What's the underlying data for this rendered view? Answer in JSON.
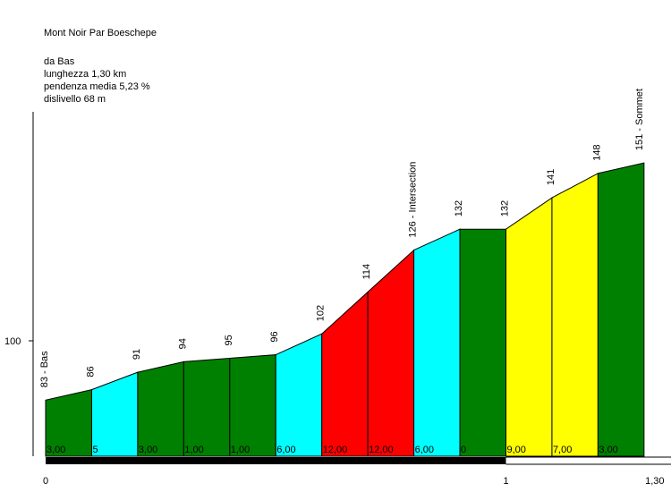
{
  "title": "Mont Noir Par Boeschepe",
  "info": {
    "from": "da Bas",
    "length": "lunghezza 1,30 km",
    "avg_gradient": "pendenza media 5,23 %",
    "elevation_gain": "dislivello 68 m"
  },
  "chart_data": {
    "type": "area",
    "title": "Mont Noir Par Boeschepe",
    "xlabel": "",
    "ylabel": "",
    "x_unit": "km",
    "xlim": [
      0,
      1.3
    ],
    "x_ticks": [
      {
        "value": 0,
        "label": "0"
      },
      {
        "value": 1,
        "label": "1"
      },
      {
        "value": 1.3,
        "label": "1,30"
      }
    ],
    "y_ticks": [
      {
        "value": 100,
        "label": "100"
      }
    ],
    "points": [
      {
        "x": 0.0,
        "y": 83,
        "label": "83 - Bas"
      },
      {
        "x": 0.1,
        "y": 86,
        "label": "86"
      },
      {
        "x": 0.2,
        "y": 91,
        "label": "91"
      },
      {
        "x": 0.3,
        "y": 94,
        "label": "94"
      },
      {
        "x": 0.4,
        "y": 95,
        "label": "95"
      },
      {
        "x": 0.5,
        "y": 96,
        "label": "96"
      },
      {
        "x": 0.6,
        "y": 102,
        "label": "102"
      },
      {
        "x": 0.7,
        "y": 114,
        "label": "114"
      },
      {
        "x": 0.8,
        "y": 126,
        "label": "126 - Intersection"
      },
      {
        "x": 0.9,
        "y": 132,
        "label": "132"
      },
      {
        "x": 1.0,
        "y": 132,
        "label": "132"
      },
      {
        "x": 1.1,
        "y": 141,
        "label": "141"
      },
      {
        "x": 1.2,
        "y": 148,
        "label": "148"
      },
      {
        "x": 1.3,
        "y": 151,
        "label": "151 - Sommet"
      }
    ],
    "segments": [
      {
        "gradient": 3.0,
        "label": "3,00",
        "color": "#008000"
      },
      {
        "gradient": 5.0,
        "label": "5",
        "color": "#00ffff"
      },
      {
        "gradient": 3.0,
        "label": "3,00",
        "color": "#008000"
      },
      {
        "gradient": 1.0,
        "label": "1,00",
        "color": "#008000"
      },
      {
        "gradient": 1.0,
        "label": "1,00",
        "color": "#008000"
      },
      {
        "gradient": 6.0,
        "label": "6,00",
        "color": "#00ffff"
      },
      {
        "gradient": 12.0,
        "label": "12,00",
        "color": "#ff0000"
      },
      {
        "gradient": 12.0,
        "label": "12,00",
        "color": "#ff0000"
      },
      {
        "gradient": 6.0,
        "label": "6,00",
        "color": "#00ffff"
      },
      {
        "gradient": 0,
        "label": "0",
        "color": "#008000"
      },
      {
        "gradient": 9.0,
        "label": "9,00",
        "color": "#ffff00"
      },
      {
        "gradient": 7.0,
        "label": "7,00",
        "color": "#ffff00"
      },
      {
        "gradient": 3.0,
        "label": "3,00",
        "color": "#008000"
      }
    ],
    "distance_bar": [
      {
        "from": 0,
        "to": 1,
        "color": "#000000"
      },
      {
        "from": 1,
        "to": 1.3,
        "color": "#ffffff"
      }
    ],
    "grid": false,
    "legend": "none"
  }
}
